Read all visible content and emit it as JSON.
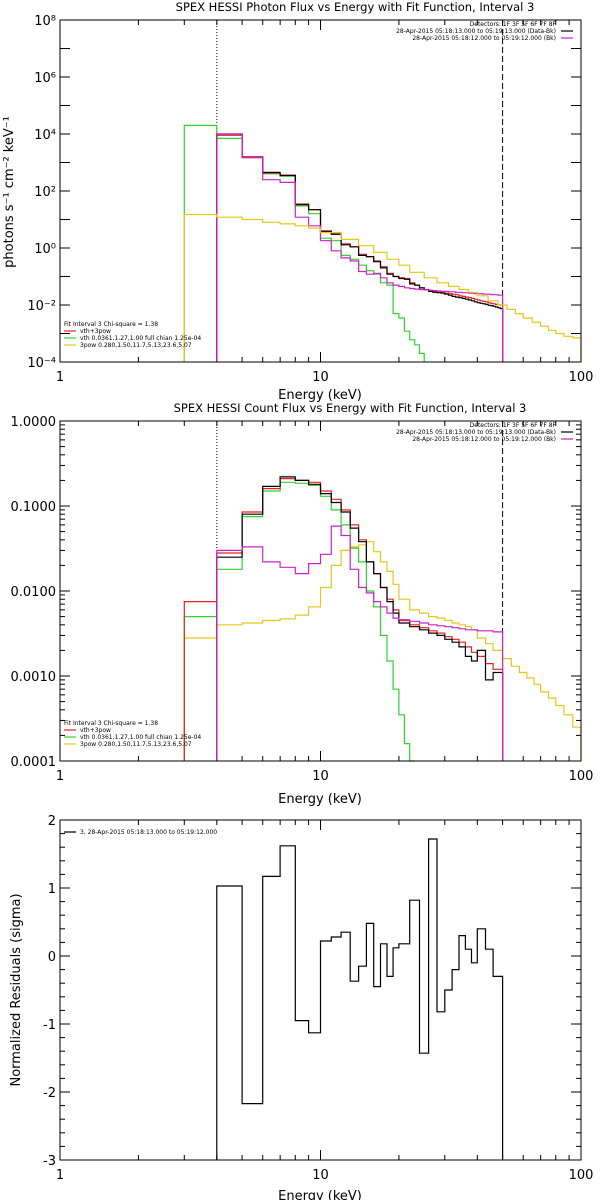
{
  "colors": {
    "data": "#000000",
    "total": "#e8231f",
    "vth": "#2fd42f",
    "pow": "#e6c81c",
    "bk": "#cc22cc",
    "axis": "#000000"
  },
  "chart_data": [
    {
      "type": "line",
      "title": "SPEX HESSI Photon Flux vs Energy with Fit Function, Interval 3",
      "xlabel": "Energy (keV)",
      "ylabel": "photons s⁻¹ cm⁻² keV⁻¹",
      "xscale": "log",
      "yscale": "log",
      "xlim": [
        1,
        100
      ],
      "ylim": [
        0.0001,
        100000000
      ],
      "xticks": [
        {
          "value": 1,
          "label": "1"
        },
        {
          "value": 10,
          "label": "10"
        },
        {
          "value": 100,
          "label": "100"
        }
      ],
      "yticks": [
        {
          "value": 0.0001,
          "label": "10⁻⁴"
        },
        {
          "value": 0.01,
          "label": "10⁻²"
        },
        {
          "value": 1,
          "label": "10⁰"
        },
        {
          "value": 100,
          "label": "10²"
        },
        {
          "value": 10000,
          "label": "10⁴"
        },
        {
          "value": 1000000,
          "label": "10⁶"
        },
        {
          "value": 100000000,
          "label": "10⁸"
        }
      ],
      "info": [
        "Detectors: 1F 3F 5F 6F 7F 8F",
        "28-Apr-2015 05:18:13.000 to 05:19:13.000 (Data-Bk)",
        "28-Apr-2015 05:18:12.000 to 05:19:12.000 (Bk)"
      ],
      "info_colors": [
        "#000000",
        "#cc22cc"
      ],
      "legend_title": "Fit Interval 3   Chi-square = 1.38",
      "legend": [
        {
          "label": "vth+3pow",
          "color": "#e8231f"
        },
        {
          "label": "vth 0.0361,1.27,1.00  full chian 1.25e-04",
          "color": "#2fd42f"
        },
        {
          "label": "3pow 0.280,1.50,11.7,5.13,23.6,5.07",
          "color": "#e6c81c"
        }
      ],
      "vlines": [
        4,
        50
      ],
      "series": [
        {
          "name": "vth",
          "color": "#2fd42f",
          "edges": [
            3,
            4,
            5,
            6,
            7,
            8,
            9,
            10,
            11,
            12,
            13,
            14,
            15,
            16,
            17,
            18,
            19,
            20,
            21,
            22,
            23,
            24,
            25
          ],
          "values": [
            20000,
            7000,
            1500,
            400,
            330,
            30,
            16,
            2.2,
            1.8,
            0.55,
            0.4,
            0.25,
            0.16,
            0.12,
            0.06,
            0.05,
            0.005,
            0.0035,
            0.0012,
            0.0006,
            0.0004,
            0.0002
          ]
        },
        {
          "name": "vth+3pow",
          "color": "#e8231f",
          "edges": [
            4,
            5,
            6,
            7,
            8,
            9,
            10,
            11,
            12,
            13,
            14,
            15,
            16,
            17,
            18,
            19,
            20,
            21,
            22,
            23,
            24,
            25,
            26,
            27,
            28,
            29,
            30,
            31,
            32,
            33,
            34,
            35,
            36,
            37,
            38,
            39,
            40,
            41,
            42,
            43,
            44,
            45,
            46,
            47,
            48,
            49,
            50
          ],
          "values": [
            9000,
            1600,
            420,
            360,
            35,
            22,
            4,
            3,
            1.4,
            1.1,
            0.6,
            0.5,
            0.35,
            0.22,
            0.13,
            0.1,
            0.09,
            0.085,
            0.06,
            0.05,
            0.04,
            0.035,
            0.032,
            0.03,
            0.028,
            0.027,
            0.026,
            0.025,
            0.024,
            0.023,
            0.021,
            0.02,
            0.019,
            0.018,
            0.017,
            0.016,
            0.015,
            0.014,
            0.0135,
            0.013,
            0.012,
            0.0115,
            0.011,
            0.0105,
            0.0101,
            0.01
          ]
        },
        {
          "name": "data-bk",
          "color": "#000000",
          "edges": [
            4,
            5,
            6,
            7,
            8,
            9,
            10,
            11,
            12,
            13,
            14,
            15,
            16,
            17,
            18,
            19,
            20,
            21,
            22,
            23,
            24,
            25,
            26,
            27,
            28,
            29,
            30,
            31,
            32,
            33,
            34,
            35,
            36,
            37,
            38,
            39,
            40,
            41,
            42,
            43,
            44,
            45,
            46,
            47,
            48,
            49,
            50
          ],
          "values": [
            10000,
            1500,
            450,
            350,
            33,
            22,
            3.8,
            3.1,
            1.3,
            1.1,
            0.55,
            0.5,
            0.33,
            0.2,
            0.12,
            0.1,
            0.085,
            0.08,
            0.055,
            0.05,
            0.04,
            0.034,
            0.03,
            0.028,
            0.027,
            0.026,
            0.024,
            0.022,
            0.02,
            0.019,
            0.018,
            0.017,
            0.016,
            0.015,
            0.014,
            0.013,
            0.012,
            0.0115,
            0.011,
            0.0105,
            0.0098,
            0.0095,
            0.009,
            0.0085,
            0.008,
            0.0075
          ]
        },
        {
          "name": "bk",
          "color": "#cc22cc",
          "edges": [
            4,
            5,
            6,
            7,
            8,
            9,
            10,
            11,
            12,
            13,
            14,
            15,
            16,
            17,
            18,
            19,
            20,
            21,
            22,
            23,
            24,
            25,
            26,
            27,
            28,
            29,
            30,
            31,
            32,
            33,
            34,
            35,
            36,
            37,
            38,
            39,
            40,
            41,
            42,
            43,
            44,
            45,
            46,
            47,
            48,
            49,
            50
          ],
          "values": [
            10000,
            1500,
            250,
            200,
            12,
            6,
            1.8,
            0.8,
            0.45,
            0.35,
            0.15,
            0.12,
            0.13,
            0.09,
            0.06,
            0.05,
            0.045,
            0.04,
            0.038,
            0.036,
            0.035,
            0.034,
            0.033,
            0.032,
            0.031,
            0.03,
            0.03,
            0.029,
            0.029,
            0.028,
            0.028,
            0.027,
            0.027,
            0.026,
            0.026,
            0.025,
            0.025,
            0.025,
            0.024,
            0.024,
            0.024,
            0.023,
            0.023,
            0.023,
            0.022,
            0.022
          ]
        },
        {
          "name": "3pow",
          "color": "#e6c81c",
          "edges": [
            3,
            4,
            5,
            6,
            7,
            8,
            9,
            10,
            12,
            14,
            16,
            18,
            20,
            22,
            25,
            28,
            31,
            34,
            37,
            40,
            44,
            48,
            52,
            56,
            60,
            65,
            70,
            75,
            80,
            86,
            93,
            100
          ],
          "values": [
            15,
            12,
            10,
            8,
            7,
            6,
            5,
            3.5,
            2,
            1.2,
            0.7,
            0.4,
            0.25,
            0.14,
            0.09,
            0.06,
            0.045,
            0.035,
            0.028,
            0.021,
            0.014,
            0.01,
            0.007,
            0.005,
            0.0035,
            0.0025,
            0.0018,
            0.0013,
            0.001,
            0.0008,
            0.0007
          ]
        }
      ]
    },
    {
      "type": "line",
      "title": "SPEX HESSI Count Flux vs Energy with Fit Function, Interval 3",
      "xlabel": "Energy (keV)",
      "ylabel": "",
      "xscale": "log",
      "yscale": "log",
      "xlim": [
        1,
        100
      ],
      "ylim": [
        0.0001,
        1
      ],
      "xticks": [
        {
          "value": 1,
          "label": "1"
        },
        {
          "value": 10,
          "label": "10"
        },
        {
          "value": 100,
          "label": "100"
        }
      ],
      "yticks": [
        {
          "value": 0.0001,
          "label": "0.0001"
        },
        {
          "value": 0.001,
          "label": "0.0010"
        },
        {
          "value": 0.01,
          "label": "0.0100"
        },
        {
          "value": 0.1,
          "label": "0.1000"
        },
        {
          "value": 1,
          "label": "1.0000"
        }
      ],
      "info": [
        "Detectors: 1F 3F 5F 6F 7F 8F",
        "28-Apr-2015 05:18:13.000 to 05:19:13.000 (Data-Bk)",
        "28-Apr-2015 05:18:12.000 to 05:19:12.000 (Bk)"
      ],
      "info_colors": [
        "#000000",
        "#cc22cc"
      ],
      "legend_title": "Fit Interval 3   Chi-square = 1.38",
      "legend": [
        {
          "label": "vth+3pow",
          "color": "#e8231f"
        },
        {
          "label": "vth 0.0361,1.27,1.00  full chian 1.25e-04",
          "color": "#2fd42f"
        },
        {
          "label": "3pow 0.280,1.50,11.7,5.13,23.6,5.07",
          "color": "#e6c81c"
        }
      ],
      "vlines": [
        4,
        50
      ],
      "series": [
        {
          "name": "3pow",
          "color": "#e6c81c",
          "edges": [
            3,
            4,
            5,
            6,
            7,
            8,
            9,
            10,
            11,
            12,
            13,
            14,
            15,
            16,
            17,
            18,
            19,
            20,
            22,
            24,
            26,
            28,
            30,
            32,
            34,
            36,
            38,
            40,
            43,
            46,
            50,
            54,
            58,
            62,
            66,
            70,
            75,
            80,
            86,
            93,
            100
          ],
          "values": [
            0.0028,
            0.004,
            0.0042,
            0.0045,
            0.0047,
            0.0052,
            0.0065,
            0.011,
            0.02,
            0.03,
            0.033,
            0.035,
            0.038,
            0.029,
            0.022,
            0.017,
            0.012,
            0.008,
            0.006,
            0.0055,
            0.005,
            0.0048,
            0.0045,
            0.0042,
            0.004,
            0.0038,
            0.0035,
            0.0028,
            0.0024,
            0.002,
            0.0016,
            0.0013,
            0.0011,
            0.00095,
            0.0008,
            0.00065,
            0.00055,
            0.00045,
            0.00035,
            0.00025
          ]
        },
        {
          "name": "vth",
          "color": "#2fd42f",
          "edges": [
            3,
            4,
            5,
            6,
            7,
            8,
            9,
            10,
            11,
            12,
            13,
            14,
            15,
            16,
            17,
            18,
            19,
            20,
            21,
            22,
            23
          ],
          "values": [
            0.005,
            0.018,
            0.075,
            0.15,
            0.19,
            0.185,
            0.175,
            0.13,
            0.09,
            0.06,
            0.032,
            0.022,
            0.01,
            0.0065,
            0.003,
            0.0015,
            0.0007,
            0.00035,
            0.00016,
            0.0001
          ]
        },
        {
          "name": "vth+3pow",
          "color": "#e8231f",
          "edges": [
            3,
            4,
            5,
            6,
            7,
            8,
            9,
            10,
            11,
            12,
            13,
            14,
            15,
            16,
            17,
            18,
            19,
            20,
            22,
            24,
            26,
            28,
            30,
            32,
            34,
            36,
            38,
            40,
            43,
            46,
            50
          ],
          "values": [
            0.0075,
            0.028,
            0.085,
            0.16,
            0.21,
            0.2,
            0.19,
            0.15,
            0.12,
            0.09,
            0.06,
            0.04,
            0.022,
            0.016,
            0.011,
            0.008,
            0.006,
            0.0045,
            0.004,
            0.0037,
            0.0034,
            0.0032,
            0.0029,
            0.0027,
            0.0025,
            0.0022,
            0.0019,
            0.0017,
            0.0014,
            0.0012
          ]
        },
        {
          "name": "data-bk",
          "color": "#000000",
          "edges": [
            4,
            5,
            6,
            7,
            8,
            9,
            10,
            11,
            12,
            13,
            14,
            15,
            16,
            17,
            18,
            19,
            20,
            22,
            24,
            26,
            28,
            30,
            32,
            34,
            36,
            38,
            40,
            43,
            46,
            50
          ],
          "values": [
            0.025,
            0.08,
            0.17,
            0.22,
            0.2,
            0.18,
            0.14,
            0.11,
            0.085,
            0.055,
            0.038,
            0.022,
            0.016,
            0.011,
            0.0075,
            0.0055,
            0.0042,
            0.0038,
            0.0035,
            0.0032,
            0.003,
            0.0027,
            0.0025,
            0.0022,
            0.0017,
            0.0015,
            0.002,
            0.0009,
            0.0011
          ]
        },
        {
          "name": "bk",
          "color": "#cc22cc",
          "edges": [
            4,
            5,
            6,
            7,
            8,
            9,
            10,
            11,
            12,
            13,
            14,
            15,
            16,
            17,
            18,
            19,
            20,
            22,
            24,
            26,
            28,
            30,
            32,
            34,
            36,
            38,
            40,
            43,
            46,
            50
          ],
          "values": [
            0.03,
            0.033,
            0.022,
            0.019,
            0.016,
            0.021,
            0.027,
            0.058,
            0.045,
            0.018,
            0.011,
            0.0095,
            0.0075,
            0.0065,
            0.0055,
            0.0048,
            0.0046,
            0.0044,
            0.0042,
            0.004,
            0.0039,
            0.0038,
            0.0037,
            0.0036,
            0.0035,
            0.0035,
            0.0034,
            0.0034,
            0.0033
          ]
        }
      ]
    },
    {
      "type": "line",
      "title": "",
      "xlabel": "Energy (keV)",
      "ylabel": "Normalized Residuals (sigma)",
      "xscale": "log",
      "yscale": "linear",
      "xlim": [
        1,
        100
      ],
      "ylim": [
        -3,
        2
      ],
      "xticks": [
        {
          "value": 1,
          "label": "1"
        },
        {
          "value": 10,
          "label": "10"
        },
        {
          "value": 100,
          "label": "100"
        }
      ],
      "yticks": [
        {
          "value": -3,
          "label": "-3"
        },
        {
          "value": -2,
          "label": "-2"
        },
        {
          "value": -1,
          "label": "-1"
        },
        {
          "value": 0,
          "label": "0"
        },
        {
          "value": 1,
          "label": "1"
        },
        {
          "value": 2,
          "label": "2"
        }
      ],
      "legend": [
        {
          "label": "3, 28-Apr-2015 05:18:13.000 to 05:19:12.000",
          "color": "#000000"
        }
      ],
      "series": [
        {
          "name": "residuals",
          "color": "#000000",
          "edges": [
            4,
            5,
            6,
            7,
            8,
            9,
            10,
            11,
            12,
            13,
            14,
            15,
            16,
            17,
            18,
            19,
            20,
            22,
            24,
            26,
            28,
            30,
            32,
            34,
            36,
            38,
            40,
            43,
            46,
            50
          ],
          "values": [
            1.03,
            -2.17,
            1.17,
            1.62,
            -0.95,
            -1.13,
            0.22,
            0.28,
            0.35,
            -0.37,
            -0.15,
            0.48,
            -0.45,
            0.18,
            -0.3,
            0.12,
            0.18,
            0.82,
            -1.43,
            1.72,
            -0.82,
            -0.5,
            -0.2,
            0.3,
            0.1,
            -0.1,
            0.4,
            0.1,
            -0.3
          ]
        }
      ]
    }
  ]
}
